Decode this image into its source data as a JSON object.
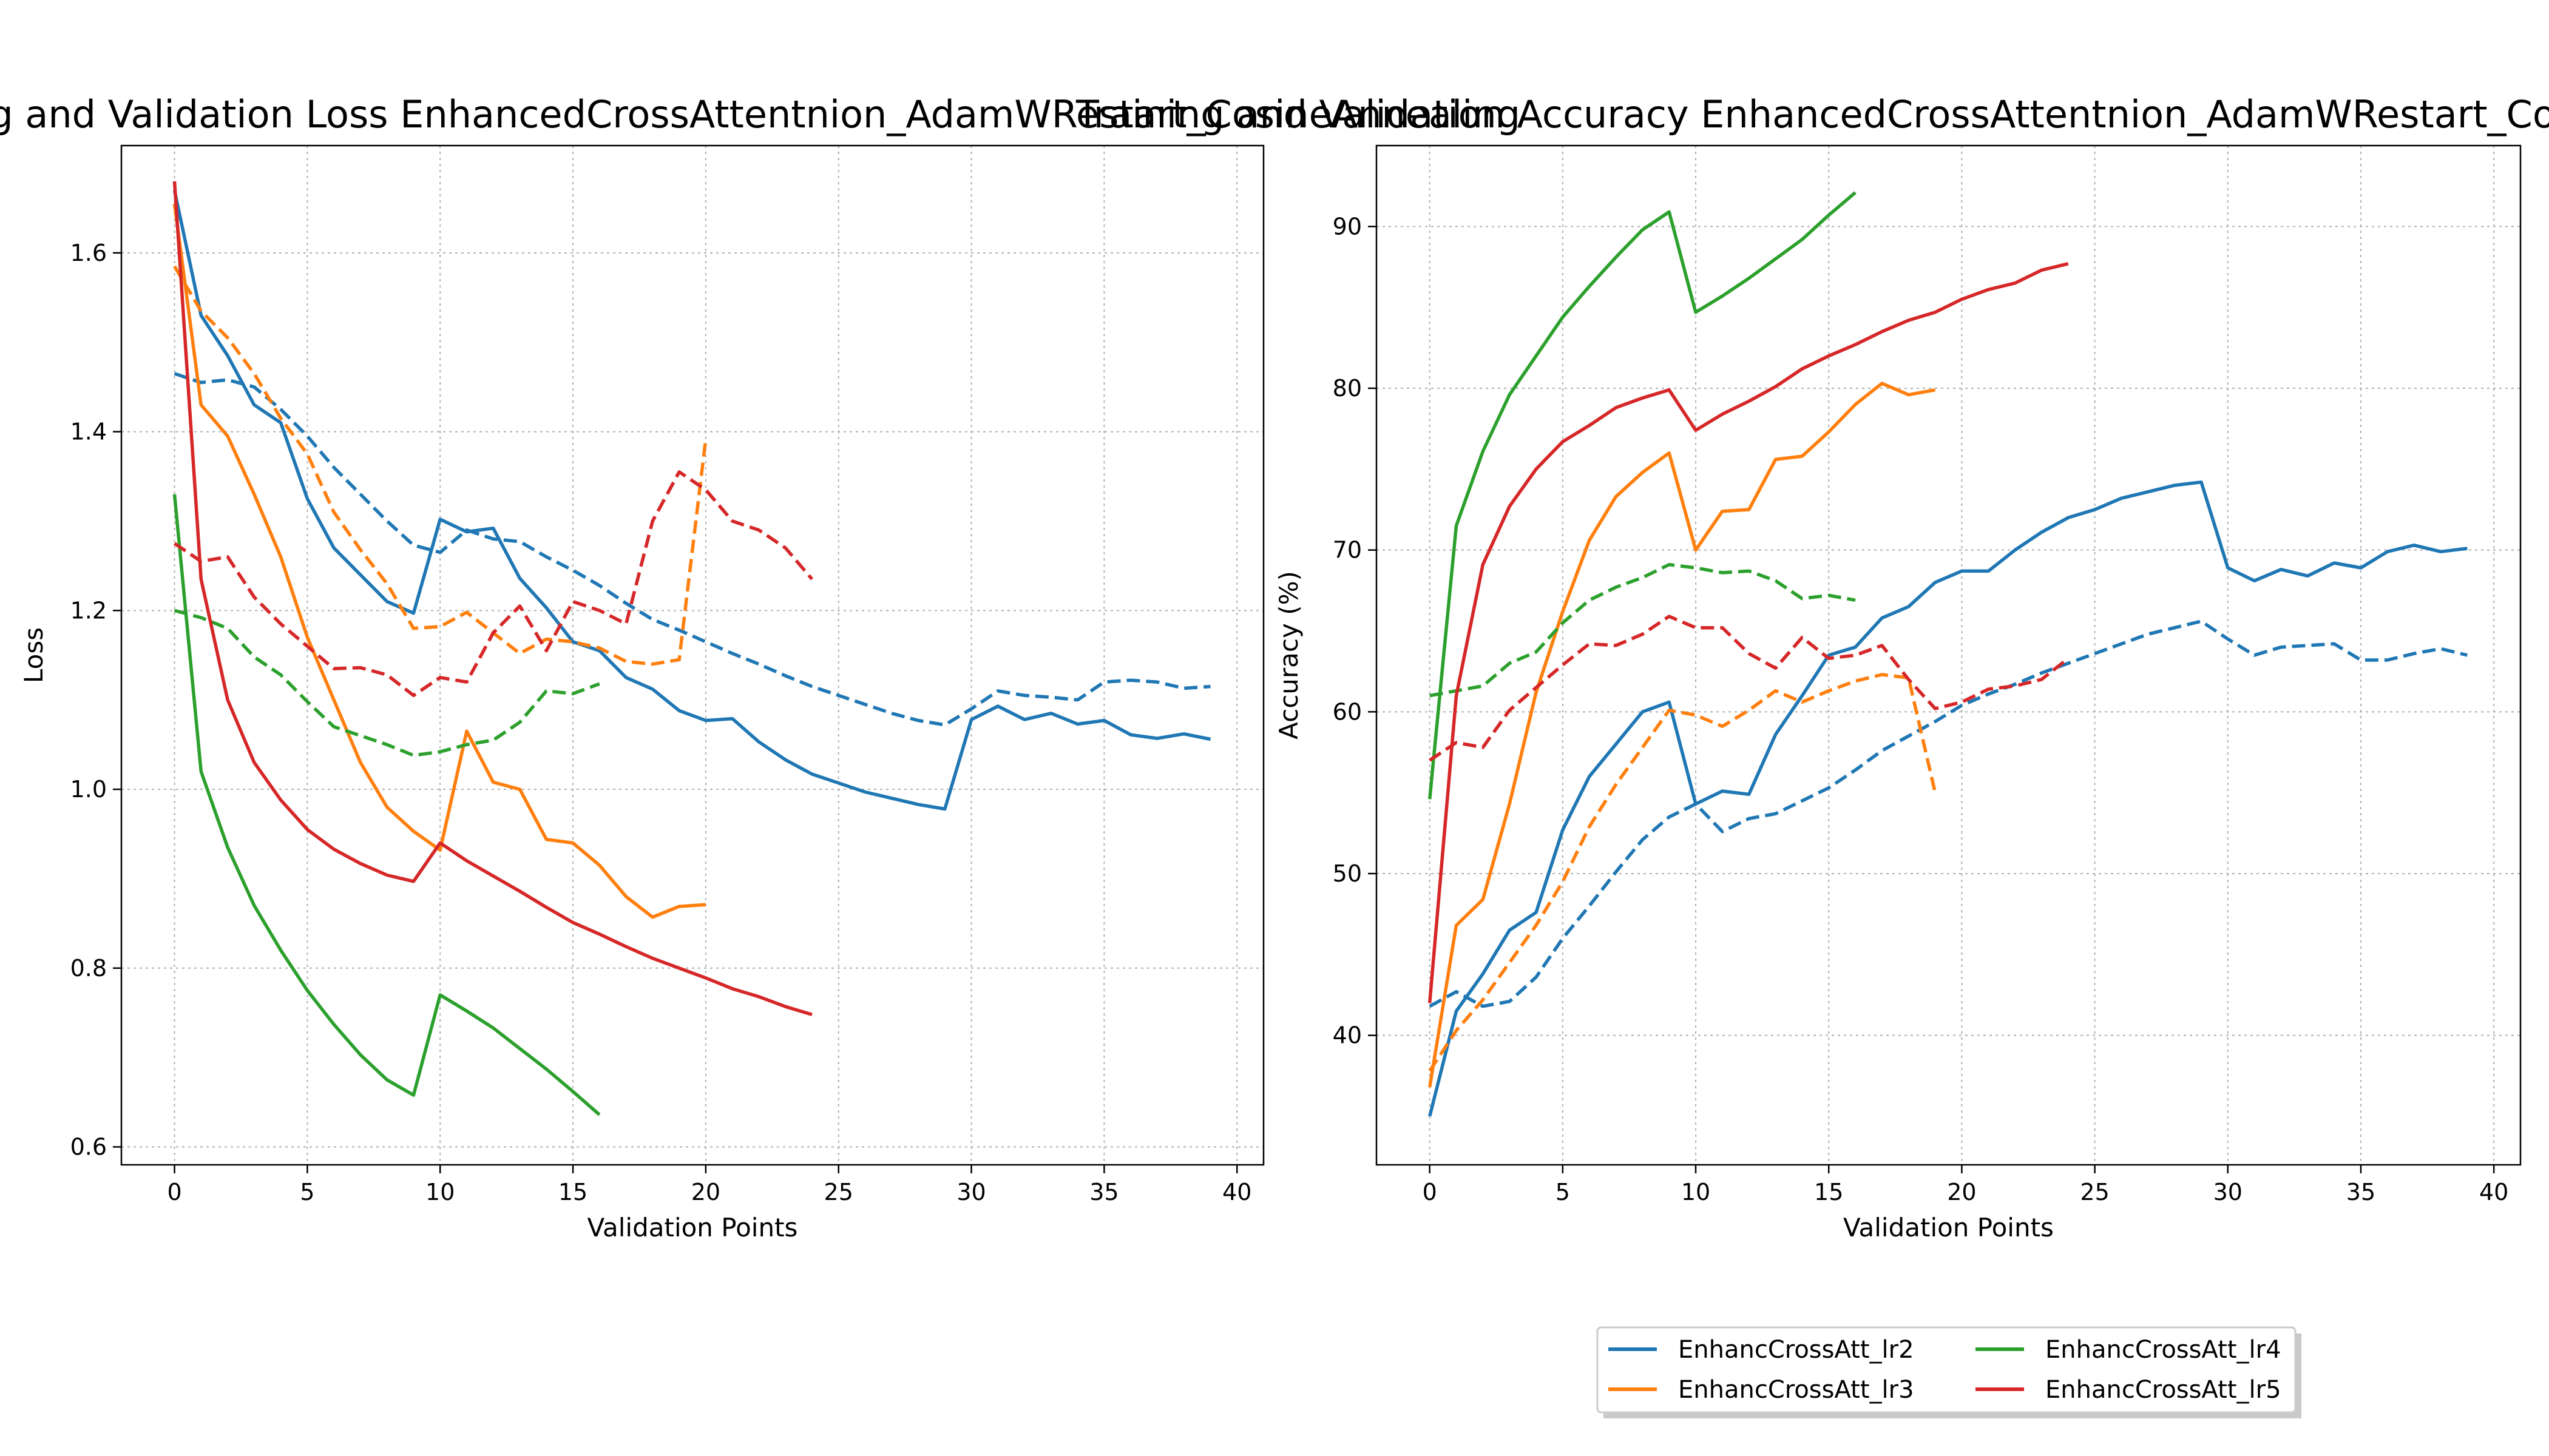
{
  "figure": {
    "legend": {
      "entries": [
        {
          "label": "EnhancCrossAtt_lr2",
          "color": "#1f77b4"
        },
        {
          "label": "EnhancCrossAtt_lr4",
          "color": "#2ca02c"
        },
        {
          "label": "EnhancCrossAtt_lr3",
          "color": "#ff7f0e"
        },
        {
          "label": "EnhancCrossAtt_lr5",
          "color": "#d62728"
        }
      ]
    }
  },
  "chart_data": [
    {
      "type": "line",
      "title": "Training and Validation Loss EnhancedCrossAttentnion_AdamWRestart_CosineAnnealing",
      "xlabel": "Validation Points",
      "ylabel": "Loss",
      "xlim": [
        -2,
        41
      ],
      "ylim": [
        0.58,
        1.72
      ],
      "xticks": [
        0,
        5,
        10,
        15,
        20,
        25,
        30,
        35,
        40
      ],
      "yticks": [
        0.6,
        0.8,
        1.0,
        1.2,
        1.4,
        1.6
      ],
      "ytick_labels": [
        "0.6",
        "0.8",
        "1.0",
        "1.2",
        "1.4",
        "1.6"
      ],
      "grid": true,
      "series": [
        {
          "name": "EnhancCrossAtt_lr2",
          "color": "#1f77b4",
          "style": "solid",
          "values": [
            1.67,
            1.53,
            1.485,
            1.43,
            1.41,
            1.325,
            1.27,
            1.24,
            1.21,
            1.197,
            1.302,
            1.288,
            1.292,
            1.236,
            1.203,
            1.165,
            1.155,
            1.125,
            1.112,
            1.088,
            1.077,
            1.079,
            1.053,
            1.033,
            1.017,
            1.007,
            0.997,
            0.99,
            0.983,
            0.978,
            1.078,
            1.093,
            1.078,
            1.085,
            1.073,
            1.077,
            1.061,
            1.057,
            1.062,
            1.056
          ]
        },
        {
          "name": "EnhancCrossAtt_lr2",
          "color": "#1f77b4",
          "style": "dashed",
          "values": [
            1.465,
            1.455,
            1.458,
            1.45,
            1.425,
            1.395,
            1.36,
            1.33,
            1.3,
            1.273,
            1.265,
            1.29,
            1.28,
            1.277,
            1.26,
            1.245,
            1.228,
            1.208,
            1.19,
            1.178,
            1.165,
            1.152,
            1.14,
            1.127,
            1.115,
            1.105,
            1.095,
            1.085,
            1.077,
            1.072,
            1.09,
            1.11,
            1.105,
            1.103,
            1.1,
            1.12,
            1.122,
            1.12,
            1.113,
            1.115
          ]
        },
        {
          "name": "EnhancCrossAtt_lr3",
          "color": "#ff7f0e",
          "style": "solid",
          "values": [
            1.655,
            1.43,
            1.395,
            1.33,
            1.26,
            1.17,
            1.1,
            1.03,
            0.98,
            0.953,
            0.932,
            1.065,
            1.008,
            1.0,
            0.944,
            0.94,
            0.915,
            0.88,
            0.857,
            0.869,
            0.871
          ]
        },
        {
          "name": "EnhancCrossAtt_lr3",
          "color": "#ff7f0e",
          "style": "dashed",
          "values": [
            1.585,
            1.535,
            1.505,
            1.465,
            1.415,
            1.375,
            1.31,
            1.268,
            1.23,
            1.18,
            1.182,
            1.198,
            1.175,
            1.152,
            1.168,
            1.165,
            1.158,
            1.143,
            1.14,
            1.145,
            1.392
          ]
        },
        {
          "name": "EnhancCrossAtt_lr4",
          "color": "#2ca02c",
          "style": "solid",
          "values": [
            1.33,
            1.02,
            0.935,
            0.87,
            0.82,
            0.775,
            0.737,
            0.703,
            0.675,
            0.658,
            0.77,
            0.752,
            0.733,
            0.71,
            0.687,
            0.662,
            0.636
          ]
        },
        {
          "name": "EnhancCrossAtt_lr4",
          "color": "#2ca02c",
          "style": "dashed",
          "values": [
            1.2,
            1.192,
            1.18,
            1.148,
            1.128,
            1.098,
            1.07,
            1.06,
            1.05,
            1.038,
            1.042,
            1.05,
            1.055,
            1.075,
            1.11,
            1.107,
            1.118
          ]
        },
        {
          "name": "EnhancCrossAtt_lr5",
          "color": "#d62728",
          "style": "solid",
          "values": [
            1.68,
            1.235,
            1.1,
            1.03,
            0.988,
            0.955,
            0.933,
            0.917,
            0.904,
            0.897,
            0.94,
            0.92,
            0.903,
            0.886,
            0.868,
            0.851,
            0.838,
            0.824,
            0.811,
            0.8,
            0.789,
            0.777,
            0.768,
            0.757,
            0.748
          ]
        },
        {
          "name": "EnhancCrossAtt_lr5",
          "color": "#d62728",
          "style": "dashed",
          "values": [
            1.275,
            1.255,
            1.26,
            1.215,
            1.185,
            1.16,
            1.135,
            1.136,
            1.128,
            1.105,
            1.125,
            1.12,
            1.175,
            1.205,
            1.155,
            1.21,
            1.2,
            1.185,
            1.3,
            1.355,
            1.335,
            1.3,
            1.29,
            1.27,
            1.235
          ]
        }
      ]
    },
    {
      "type": "line",
      "title": "Training and Validation Accuracy EnhancedCrossAttentnion_AdamWRestart_CosineAnnealing",
      "xlabel": "Validation Points",
      "ylabel": "Accuracy (%)",
      "xlim": [
        -2,
        41
      ],
      "ylim": [
        32,
        95
      ],
      "xticks": [
        0,
        5,
        10,
        15,
        20,
        25,
        30,
        35,
        40
      ],
      "yticks": [
        40,
        50,
        60,
        70,
        80,
        90
      ],
      "ytick_labels": [
        "40",
        "50",
        "60",
        "70",
        "80",
        "90"
      ],
      "grid": true,
      "series": [
        {
          "name": "EnhancCrossAtt_lr2",
          "color": "#1f77b4",
          "style": "solid",
          "values": [
            35.0,
            41.5,
            43.8,
            46.5,
            47.6,
            52.7,
            56.0,
            58.0,
            60.0,
            60.6,
            54.3,
            55.1,
            54.9,
            58.6,
            61.0,
            63.5,
            64.0,
            65.8,
            66.5,
            68.0,
            68.7,
            68.7,
            70.0,
            71.1,
            72.0,
            72.5,
            73.2,
            73.6,
            74.0,
            74.2,
            68.9,
            68.1,
            68.8,
            68.4,
            69.2,
            68.9,
            69.9,
            70.3,
            69.9,
            70.1
          ]
        },
        {
          "name": "EnhancCrossAtt_lr2",
          "color": "#1f77b4",
          "style": "dashed",
          "values": [
            41.8,
            42.7,
            41.8,
            42.1,
            43.6,
            46.0,
            48.0,
            50.1,
            52.1,
            53.5,
            54.3,
            52.6,
            53.4,
            53.7,
            54.5,
            55.3,
            56.4,
            57.6,
            58.5,
            59.4,
            60.4,
            61.1,
            61.7,
            62.4,
            63.0,
            63.6,
            64.2,
            64.8,
            65.2,
            65.6,
            64.5,
            63.5,
            64.0,
            64.1,
            64.2,
            63.2,
            63.2,
            63.6,
            63.9,
            63.5
          ]
        },
        {
          "name": "EnhancCrossAtt_lr3",
          "color": "#ff7f0e",
          "style": "solid",
          "values": [
            36.8,
            46.8,
            48.4,
            54.3,
            61.2,
            66.2,
            70.6,
            73.3,
            74.8,
            76.0,
            70.0,
            72.4,
            72.5,
            75.6,
            75.8,
            77.3,
            79.0,
            80.3,
            79.6,
            79.9
          ]
        },
        {
          "name": "EnhancCrossAtt_lr3",
          "color": "#ff7f0e",
          "style": "dashed",
          "values": [
            37.8,
            40.3,
            42.2,
            44.5,
            46.8,
            49.5,
            52.9,
            55.5,
            57.8,
            60.1,
            59.8,
            59.1,
            60.1,
            61.3,
            60.6,
            61.3,
            61.9,
            62.3,
            62.1,
            55.0
          ]
        },
        {
          "name": "EnhancCrossAtt_lr4",
          "color": "#2ca02c",
          "style": "solid",
          "values": [
            54.6,
            71.5,
            76.1,
            79.6,
            82.0,
            84.4,
            86.3,
            88.1,
            89.8,
            90.9,
            84.7,
            85.7,
            86.8,
            88.0,
            89.2,
            90.7,
            92.1
          ]
        },
        {
          "name": "EnhancCrossAtt_lr4",
          "color": "#2ca02c",
          "style": "dashed",
          "values": [
            61.0,
            61.3,
            61.6,
            63.0,
            63.7,
            65.5,
            66.9,
            67.7,
            68.3,
            69.1,
            68.9,
            68.6,
            68.7,
            68.1,
            67.0,
            67.2,
            66.9
          ]
        },
        {
          "name": "EnhancCrossAtt_lr5",
          "color": "#d62728",
          "style": "solid",
          "values": [
            42.0,
            61.0,
            69.1,
            72.7,
            75.0,
            76.7,
            77.7,
            78.8,
            79.4,
            79.9,
            77.4,
            78.4,
            79.2,
            80.1,
            81.2,
            82.0,
            82.7,
            83.5,
            84.2,
            84.7,
            85.5,
            86.1,
            86.5,
            87.3,
            87.7
          ]
        },
        {
          "name": "EnhancCrossAtt_lr5",
          "color": "#d62728",
          "style": "dashed",
          "values": [
            57.0,
            58.1,
            57.8,
            60.1,
            61.5,
            62.9,
            64.2,
            64.1,
            64.8,
            65.9,
            65.2,
            65.2,
            63.6,
            62.7,
            64.6,
            63.3,
            63.5,
            64.1,
            62.0,
            60.2,
            60.6,
            61.4,
            61.6,
            62.0,
            63.3
          ]
        }
      ]
    }
  ]
}
